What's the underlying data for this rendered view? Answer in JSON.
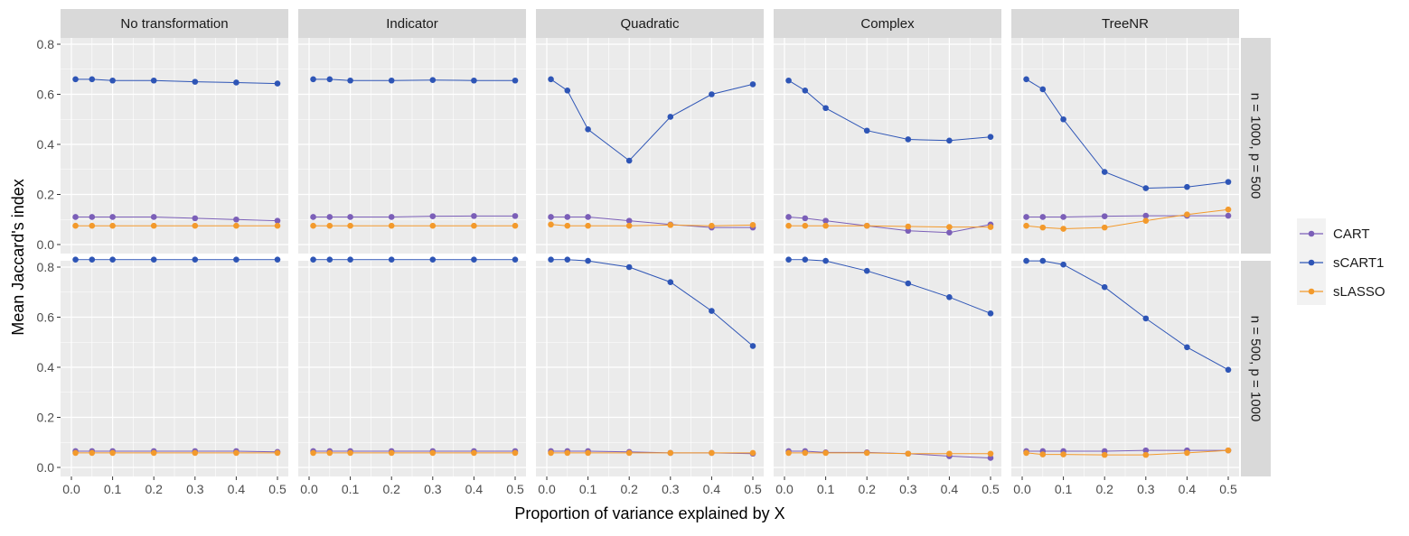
{
  "chart_data": {
    "type": "line",
    "xlabel": "Proportion of variance explained by X",
    "ylabel": "Mean Jaccard's index",
    "x": [
      0.01,
      0.05,
      0.1,
      0.2,
      0.3,
      0.4,
      0.5
    ],
    "xticks": [
      "0.0",
      "0.1",
      "0.2",
      "0.3",
      "0.4",
      "0.5"
    ],
    "xlim": [
      0,
      0.5
    ],
    "ylim": [
      0,
      0.8
    ],
    "yticks": [
      "0.0",
      "0.2",
      "0.4",
      "0.6",
      "0.8"
    ],
    "grid": true,
    "legend_position": "right",
    "series_order": [
      "CART",
      "sCART1",
      "sLASSO"
    ],
    "colors": {
      "CART": "#7b5fb8",
      "sCART1": "#2e55b6",
      "sLASSO": "#f39a2c",
      "panel_bg": "#ebebeb",
      "strip_bg": "#d9d9d9",
      "grid": "#ffffff"
    },
    "columns": [
      "No transformation",
      "Indicator",
      "Quadratic",
      "Complex",
      "TreeNR"
    ],
    "rows": [
      "n = 1000, p = 500",
      "n = 500, p = 1000"
    ],
    "panels": [
      [
        {
          "CART": [
            0.11,
            0.11,
            0.11,
            0.11,
            0.105,
            0.1,
            0.095
          ],
          "sCART1": [
            0.66,
            0.66,
            0.655,
            0.655,
            0.65,
            0.647,
            0.643
          ],
          "sLASSO": [
            0.075,
            0.075,
            0.075,
            0.075,
            0.075,
            0.075,
            0.075
          ]
        },
        {
          "CART": [
            0.11,
            0.11,
            0.11,
            0.11,
            0.113,
            0.114,
            0.114
          ],
          "sCART1": [
            0.66,
            0.66,
            0.655,
            0.655,
            0.657,
            0.655,
            0.655
          ],
          "sLASSO": [
            0.075,
            0.075,
            0.075,
            0.075,
            0.075,
            0.075,
            0.075
          ]
        },
        {
          "CART": [
            0.11,
            0.11,
            0.11,
            0.095,
            0.08,
            0.068,
            0.068
          ],
          "sCART1": [
            0.66,
            0.615,
            0.46,
            0.335,
            0.51,
            0.6,
            0.64
          ],
          "sLASSO": [
            0.08,
            0.075,
            0.075,
            0.075,
            0.078,
            0.075,
            0.078
          ]
        },
        {
          "CART": [
            0.11,
            0.105,
            0.095,
            0.075,
            0.055,
            0.048,
            0.08
          ],
          "sCART1": [
            0.655,
            0.615,
            0.545,
            0.455,
            0.42,
            0.415,
            0.43
          ],
          "sLASSO": [
            0.075,
            0.075,
            0.075,
            0.075,
            0.072,
            0.07,
            0.07
          ]
        },
        {
          "CART": [
            0.11,
            0.11,
            0.11,
            0.113,
            0.115,
            0.115,
            0.115
          ],
          "sCART1": [
            0.66,
            0.62,
            0.5,
            0.29,
            0.225,
            0.23,
            0.25
          ],
          "sLASSO": [
            0.075,
            0.068,
            0.063,
            0.068,
            0.095,
            0.12,
            0.14
          ]
        }
      ],
      [
        {
          "CART": [
            0.065,
            0.065,
            0.065,
            0.065,
            0.065,
            0.065,
            0.062
          ],
          "sCART1": [
            0.83,
            0.83,
            0.83,
            0.83,
            0.83,
            0.83,
            0.83
          ],
          "sLASSO": [
            0.058,
            0.058,
            0.058,
            0.058,
            0.058,
            0.058,
            0.058
          ]
        },
        {
          "CART": [
            0.065,
            0.065,
            0.065,
            0.065,
            0.065,
            0.065,
            0.065
          ],
          "sCART1": [
            0.83,
            0.83,
            0.83,
            0.83,
            0.83,
            0.83,
            0.83
          ],
          "sLASSO": [
            0.058,
            0.058,
            0.058,
            0.058,
            0.058,
            0.058,
            0.058
          ]
        },
        {
          "CART": [
            0.065,
            0.065,
            0.065,
            0.062,
            0.058,
            0.058,
            0.055
          ],
          "sCART1": [
            0.83,
            0.83,
            0.825,
            0.8,
            0.74,
            0.625,
            0.485
          ],
          "sLASSO": [
            0.058,
            0.058,
            0.058,
            0.058,
            0.058,
            0.058,
            0.058
          ]
        },
        {
          "CART": [
            0.065,
            0.065,
            0.06,
            0.06,
            0.055,
            0.045,
            0.038
          ],
          "sCART1": [
            0.83,
            0.83,
            0.825,
            0.785,
            0.735,
            0.68,
            0.615
          ],
          "sLASSO": [
            0.058,
            0.058,
            0.058,
            0.058,
            0.055,
            0.055,
            0.055
          ]
        },
        {
          "CART": [
            0.065,
            0.065,
            0.065,
            0.065,
            0.068,
            0.068,
            0.068
          ],
          "sCART1": [
            0.825,
            0.825,
            0.81,
            0.72,
            0.595,
            0.48,
            0.39
          ],
          "sLASSO": [
            0.058,
            0.052,
            0.052,
            0.05,
            0.05,
            0.058,
            0.068
          ]
        }
      ]
    ]
  }
}
